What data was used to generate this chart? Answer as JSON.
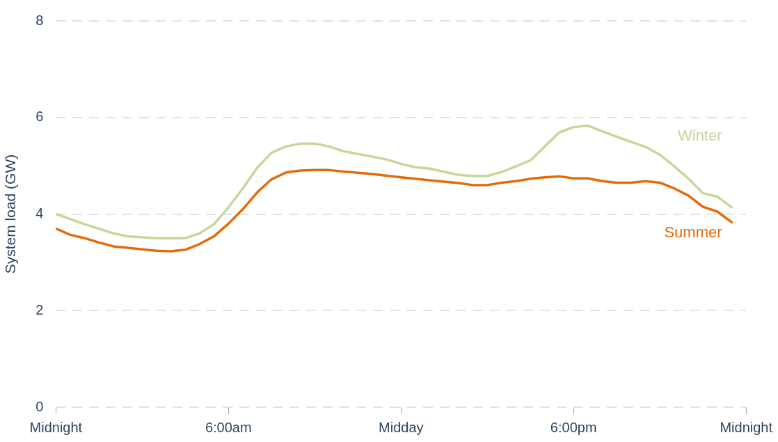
{
  "chart_data": {
    "type": "line",
    "ylabel": "System load (GW)",
    "xlim": [
      0,
      24
    ],
    "xticks": [
      {
        "value": 0,
        "label": "Midnight"
      },
      {
        "value": 6,
        "label": "6:00am"
      },
      {
        "value": 12,
        "label": "Midday"
      },
      {
        "value": 18,
        "label": "6:00pm"
      },
      {
        "value": 24,
        "label": "Midnight"
      }
    ],
    "ylim": [
      0,
      8
    ],
    "yticks": [
      0,
      2,
      4,
      6,
      8
    ],
    "grid": "y",
    "legend": false,
    "marker": "none",
    "line_style": "solid",
    "series": [
      {
        "name": "Winter",
        "color": "#c5d89a",
        "x": [
          0,
          1,
          2,
          2.5,
          3.5,
          4.5,
          5,
          5.5,
          6,
          6.5,
          7,
          7.5,
          8,
          8.5,
          9,
          9.5,
          10,
          11,
          11.5,
          12,
          12.5,
          13,
          14,
          14.5,
          15,
          15.5,
          16,
          16.5,
          17,
          17.5,
          18,
          18.5,
          19.5,
          20.5,
          21,
          21.5,
          22,
          22.5,
          23,
          23.5
        ],
        "values": [
          4.0,
          3.79,
          3.6,
          3.54,
          3.5,
          3.5,
          3.6,
          3.79,
          4.14,
          4.53,
          4.96,
          5.27,
          5.4,
          5.46,
          5.46,
          5.4,
          5.3,
          5.19,
          5.13,
          5.04,
          4.97,
          4.94,
          4.81,
          4.79,
          4.79,
          4.87,
          4.99,
          5.11,
          5.4,
          5.69,
          5.8,
          5.83,
          5.6,
          5.39,
          5.23,
          4.99,
          4.73,
          4.43,
          4.36,
          4.14
        ]
      },
      {
        "name": "Summer",
        "color": "#e36c0a",
        "x": [
          0,
          0.5,
          1,
          1.5,
          2,
          2.5,
          3,
          3.5,
          4,
          4.5,
          5,
          5.5,
          6,
          6.5,
          7,
          7.5,
          8,
          8.5,
          9,
          9.5,
          10,
          11,
          12,
          13,
          14,
          14.5,
          15,
          15.5,
          16,
          16.5,
          17,
          17.5,
          18,
          18.5,
          19,
          19.5,
          20,
          20.5,
          21,
          21.5,
          22,
          22.5,
          23,
          23.5
        ],
        "values": [
          3.7,
          3.57,
          3.5,
          3.41,
          3.33,
          3.3,
          3.27,
          3.24,
          3.23,
          3.26,
          3.38,
          3.54,
          3.8,
          4.1,
          4.45,
          4.72,
          4.86,
          4.9,
          4.91,
          4.91,
          4.88,
          4.83,
          4.76,
          4.7,
          4.64,
          4.6,
          4.6,
          4.65,
          4.68,
          4.73,
          4.76,
          4.78,
          4.74,
          4.74,
          4.68,
          4.65,
          4.65,
          4.68,
          4.65,
          4.53,
          4.38,
          4.15,
          4.05,
          3.83
        ]
      }
    ]
  }
}
